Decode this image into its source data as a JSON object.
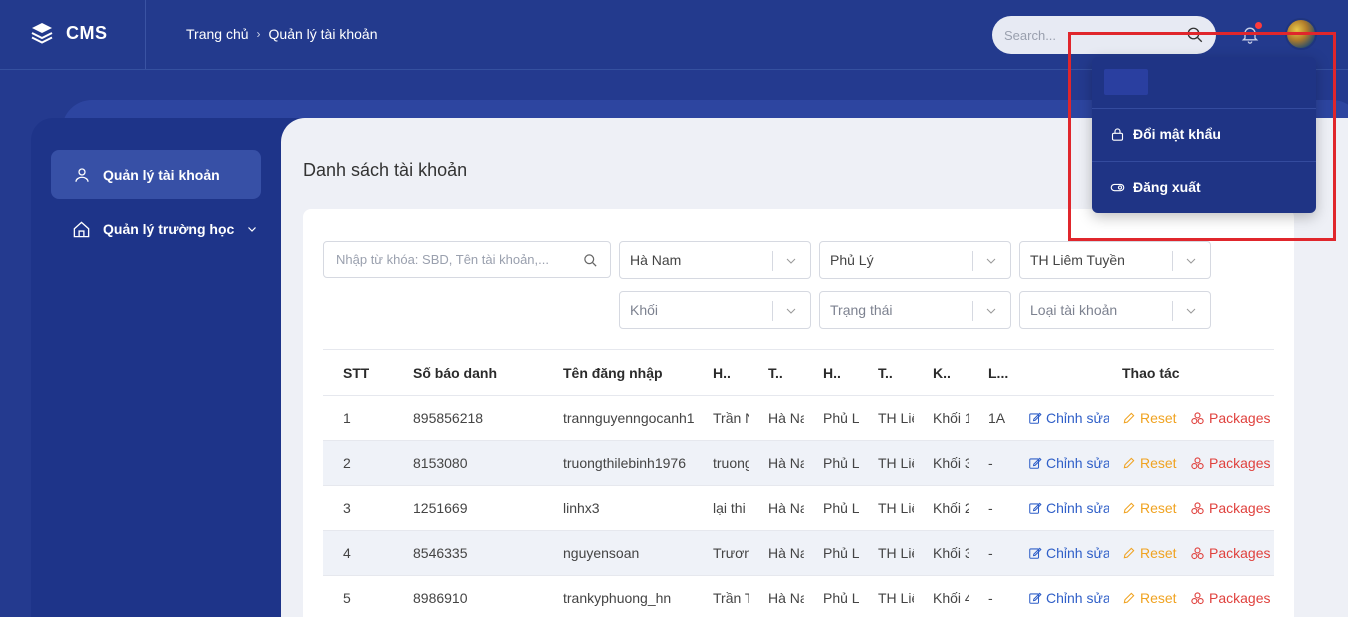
{
  "header": {
    "brand": "CMS",
    "breadcrumb": [
      "Trang chủ",
      "Quản lý tài khoản"
    ],
    "search_placeholder": "Search..."
  },
  "sidebar": {
    "items": [
      {
        "label": "Quản lý tài khoản",
        "icon": "user-icon",
        "active": true
      },
      {
        "label": "Quản lý trường học",
        "icon": "home-icon",
        "expandable": true
      }
    ]
  },
  "main": {
    "title": "Danh sách tài khoản",
    "filters": {
      "keyword_placeholder": "Nhập từ khóa: SBD, Tên tài khoản,...",
      "selects": [
        "Hà Nam",
        "Phủ Lý",
        "TH Liêm Tuyền",
        "Khối",
        "Trạng thái",
        "Loại tài khoản"
      ]
    },
    "table": {
      "headers": [
        "STT",
        "Số báo danh",
        "Tên đăng nhập",
        "H..",
        "T..",
        "H..",
        "T..",
        "K..",
        "L...",
        "Thao tác"
      ],
      "rows": [
        [
          "1",
          "895856218",
          "trannguyenngocanh1",
          "Trần N",
          "Hà Na",
          "Phủ L",
          "TH Liê",
          "Khối 1",
          "1A"
        ],
        [
          "2",
          "8153080",
          "truongthilebinh1976",
          "truong",
          "Hà Na",
          "Phủ L",
          "TH Liê",
          "Khối 3",
          "-"
        ],
        [
          "3",
          "1251669",
          "linhx3",
          "lại thi",
          "Hà Na",
          "Phủ L",
          "TH Liê",
          "Khối 2",
          "-"
        ],
        [
          "4",
          "8546335",
          "nguyensoan",
          "Trươn",
          "Hà Na",
          "Phủ L",
          "TH Liê",
          "Khối 3",
          "-"
        ],
        [
          "5",
          "8986910",
          "trankyphuong_hn",
          "Trần T",
          "Hà Na",
          "Phủ L",
          "TH Liê",
          "Khối 4",
          "-"
        ]
      ],
      "actions": {
        "edit": "Chỉnh sửa",
        "reset": "Reset",
        "packages": "Packages"
      }
    }
  },
  "dropdown": {
    "items": [
      {
        "label": "Đổi mật khẩu",
        "icon": "lock-icon"
      },
      {
        "label": "Đăng xuất",
        "icon": "toggle-icon"
      }
    ]
  },
  "colors": {
    "background": "#243a8f",
    "accent_edit": "#2f5fc8",
    "accent_reset": "#f0a321",
    "accent_packages": "#e0413d",
    "highlight": "#e0262c"
  }
}
